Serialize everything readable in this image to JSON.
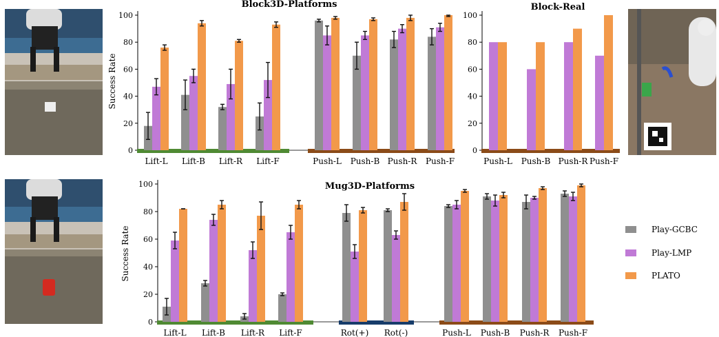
{
  "legend": {
    "items": [
      {
        "label": "Play-GCBC",
        "color": "#8f8f8f"
      },
      {
        "label": "Play-LMP",
        "color": "#c07ad6"
      },
      {
        "label": "PLATO",
        "color": "#f2994a"
      }
    ]
  },
  "photos": [
    {
      "name": "sim-block-scene-photo",
      "object_color": "#eeeeee"
    },
    {
      "name": "real-robot-scene-photo",
      "object_color": "#3aa64a"
    },
    {
      "name": "sim-mug-scene-photo",
      "object_color": "#d42a20"
    }
  ],
  "chart_data": [
    {
      "type": "bar",
      "title": "Block3D-Platforms",
      "ylabel": "Success Rate",
      "ylim": [
        0,
        100
      ],
      "yticks": [
        0,
        20,
        40,
        60,
        80,
        100
      ],
      "categories": [
        "Lift-L",
        "Lift-B",
        "Lift-R",
        "Lift-F",
        "Push-L",
        "Push-B",
        "Push-R",
        "Push-F"
      ],
      "series": [
        {
          "name": "Play-GCBC",
          "values": [
            18,
            41,
            32,
            25,
            96,
            70,
            82,
            84
          ],
          "errors": [
            10,
            11,
            2,
            10,
            1,
            10,
            6,
            6
          ]
        },
        {
          "name": "Play-LMP",
          "values": [
            47,
            55,
            49,
            52,
            85,
            85,
            90,
            91
          ],
          "errors": [
            6,
            5,
            11,
            13,
            7,
            3,
            3,
            3
          ]
        },
        {
          "name": "PLATO",
          "values": [
            76,
            94,
            81,
            93,
            98,
            97,
            98,
            100
          ],
          "errors": [
            2,
            2,
            1,
            2,
            1,
            1,
            2,
            1
          ]
        }
      ],
      "groups": [
        {
          "label": "Lift",
          "color": "#4f8a33"
        },
        {
          "label": "Push",
          "color": "#8b4b18"
        }
      ]
    },
    {
      "type": "bar",
      "title": "Block-Real",
      "ylim": [
        0,
        100
      ],
      "yticks": [
        0,
        20,
        40,
        60,
        80,
        100
      ],
      "categories": [
        "Push-L",
        "Push-B",
        "Push-R",
        "Push-F"
      ],
      "series": [
        {
          "name": "Play-LMP",
          "values": [
            80,
            60,
            80,
            70
          ]
        },
        {
          "name": "PLATO",
          "values": [
            80,
            80,
            90,
            100
          ]
        }
      ],
      "groups": [
        {
          "label": "Push",
          "color": "#8b4b18"
        }
      ]
    },
    {
      "type": "bar",
      "title": "Mug3D-Platforms",
      "ylabel": "Success Rate",
      "ylim": [
        0,
        100
      ],
      "yticks": [
        0,
        20,
        40,
        60,
        80,
        100
      ],
      "categories": [
        "Lift-L",
        "Lift-B",
        "Lift-R",
        "Lift-F",
        "Rot(+)",
        "Rot(-)",
        "Push-L",
        "Push-B",
        "Push-R",
        "Push-F"
      ],
      "series": [
        {
          "name": "Play-GCBC",
          "values": [
            11,
            28,
            4,
            20,
            79,
            81,
            84,
            91,
            87,
            93
          ],
          "errors": [
            6,
            2,
            2,
            1,
            6,
            1,
            1,
            2,
            5,
            2
          ]
        },
        {
          "name": "Play-LMP",
          "values": [
            59,
            74,
            52,
            65,
            51,
            63,
            85,
            88,
            90,
            91
          ],
          "errors": [
            6,
            4,
            6,
            5,
            5,
            3,
            3,
            4,
            1,
            3
          ]
        },
        {
          "name": "PLATO",
          "values": [
            82,
            85,
            77,
            85,
            81,
            87,
            95,
            92,
            97,
            99
          ],
          "errors": [
            0,
            3,
            10,
            3,
            2,
            6,
            1,
            2,
            1,
            1
          ]
        }
      ],
      "groups": [
        {
          "label": "Lift",
          "color": "#4f8a33"
        },
        {
          "label": "Rot",
          "color": "#173c6a"
        },
        {
          "label": "Push",
          "color": "#8b4b18"
        }
      ]
    }
  ]
}
